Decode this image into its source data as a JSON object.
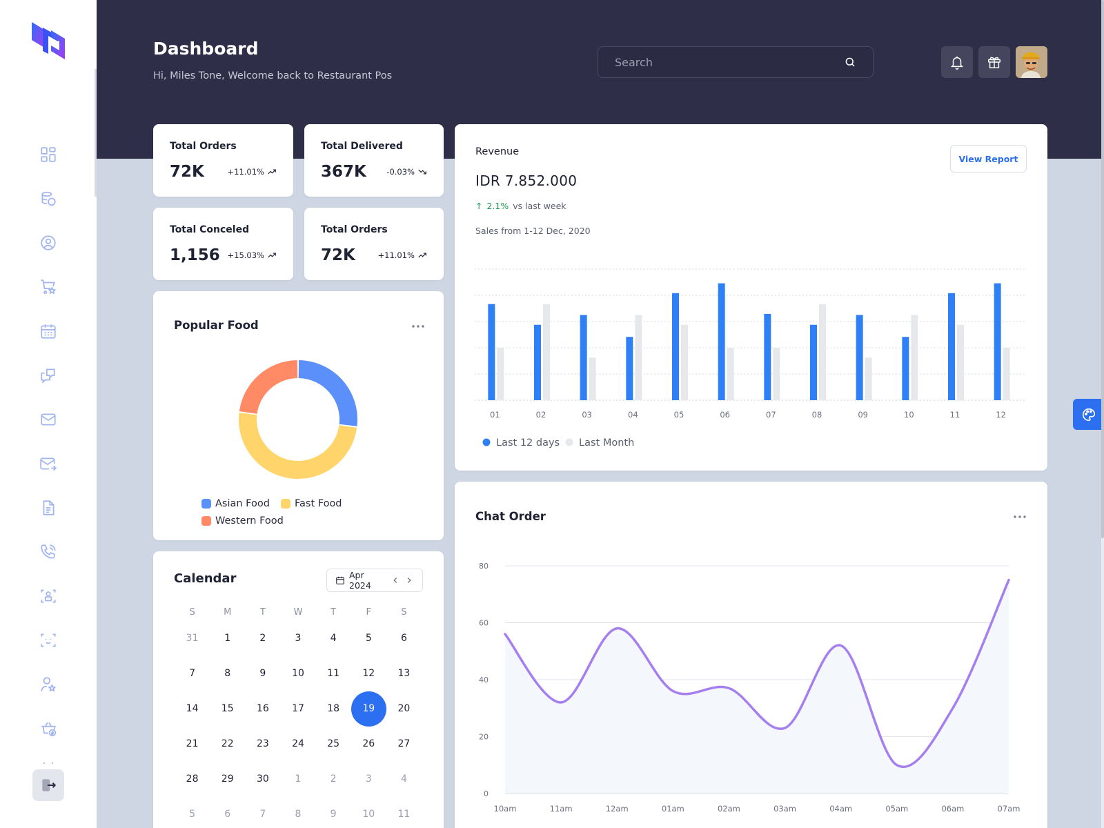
{
  "header": {
    "title": "Dashboard",
    "subtitle": "Hi, Miles Tone, Welcome back to Restaurant Pos",
    "search_placeholder": "Search"
  },
  "sidebar": {
    "items": [
      {
        "name": "dashboard-icon"
      },
      {
        "name": "database-icon"
      },
      {
        "name": "user-circle-icon"
      },
      {
        "name": "cart-star-icon"
      },
      {
        "name": "calendar-icon"
      },
      {
        "name": "chat-icon"
      },
      {
        "name": "mail-icon"
      },
      {
        "name": "mail-send-icon"
      },
      {
        "name": "document-icon"
      },
      {
        "name": "phone-icon"
      },
      {
        "name": "user-lock-icon"
      },
      {
        "name": "face-scan-icon"
      },
      {
        "name": "user-star-icon"
      },
      {
        "name": "basket-dollar-icon"
      }
    ],
    "logout_icon": "logout-icon"
  },
  "stats": [
    {
      "label": "Total Orders",
      "value": "72K",
      "change": "+11.01%",
      "trend": "up"
    },
    {
      "label": "Total Delivered",
      "value": "367K",
      "change": "-0.03%",
      "trend": "down"
    },
    {
      "label": "Total Conceled",
      "value": "1,156",
      "change": "+15.03%",
      "trend": "up"
    },
    {
      "label": "Total Orders",
      "value": "72K",
      "change": "+11.01%",
      "trend": "up"
    }
  ],
  "revenue": {
    "label": "Revenue",
    "value": "IDR 7.852.000",
    "change_value": "2.1%",
    "change_text": "vs last week",
    "period": "Sales from 1-12 Dec, 2020",
    "button": "View Report"
  },
  "popular_food": {
    "title": "Popular Food",
    "legend": [
      {
        "label": "Asian Food",
        "color": "#5b8ff9"
      },
      {
        "label": "Fast Food",
        "color": "#ffd56b"
      },
      {
        "label": "Western Food",
        "color": "#ff8a65"
      }
    ]
  },
  "calendar": {
    "title": "Calendar",
    "month": "Apr 2024",
    "weekdays": [
      "S",
      "M",
      "T",
      "W",
      "T",
      "F",
      "S"
    ],
    "weeks": [
      [
        "31",
        "1",
        "2",
        "3",
        "4",
        "5",
        "6"
      ],
      [
        "7",
        "8",
        "9",
        "10",
        "11",
        "12",
        "13"
      ],
      [
        "14",
        "15",
        "16",
        "17",
        "18",
        "19",
        "20"
      ],
      [
        "21",
        "22",
        "23",
        "24",
        "25",
        "26",
        "27"
      ],
      [
        "28",
        "29",
        "30",
        "1",
        "2",
        "3",
        "4"
      ],
      [
        "5",
        "6",
        "7",
        "8",
        "9",
        "10",
        "11"
      ]
    ],
    "selected": "19"
  },
  "chat_order": {
    "title": "Chat Order"
  },
  "colors": {
    "accent": "#2c6ff0",
    "header_bg": "#2e2e48",
    "bar_primary": "#2f80f7",
    "bar_secondary": "#e6e8ec",
    "line": "#a57ff0"
  },
  "chart_data": [
    {
      "type": "pie",
      "title": "Popular Food",
      "categories": [
        "Asian Food",
        "Fast Food",
        "Western Food"
      ],
      "values": [
        27,
        50,
        23
      ]
    },
    {
      "type": "bar",
      "title": "Revenue",
      "categories": [
        "01",
        "02",
        "03",
        "04",
        "05",
        "06",
        "07",
        "08",
        "09",
        "10",
        "11",
        "12"
      ],
      "series": [
        {
          "name": "Last 12 days",
          "values": [
            88,
            69,
            78,
            58,
            98,
            107,
            79,
            69,
            78,
            58,
            98,
            107
          ]
        },
        {
          "name": "Last Month",
          "values": [
            48,
            88,
            39,
            78,
            69,
            48,
            48,
            88,
            39,
            78,
            69,
            48
          ]
        }
      ],
      "ylim": [
        0,
        120
      ],
      "legend": "bottom-left"
    },
    {
      "type": "line",
      "title": "Chat Order",
      "x": [
        "10am",
        "11am",
        "12am",
        "01am",
        "02am",
        "03am",
        "04am",
        "05am",
        "06am",
        "07am"
      ],
      "y_ticks": [
        "0",
        "20",
        "40",
        "60",
        "80"
      ],
      "series": [
        {
          "values": [
            56,
            32,
            58,
            36,
            37,
            23,
            52,
            10,
            30,
            75
          ]
        }
      ],
      "ylim": [
        0,
        80
      ]
    }
  ]
}
